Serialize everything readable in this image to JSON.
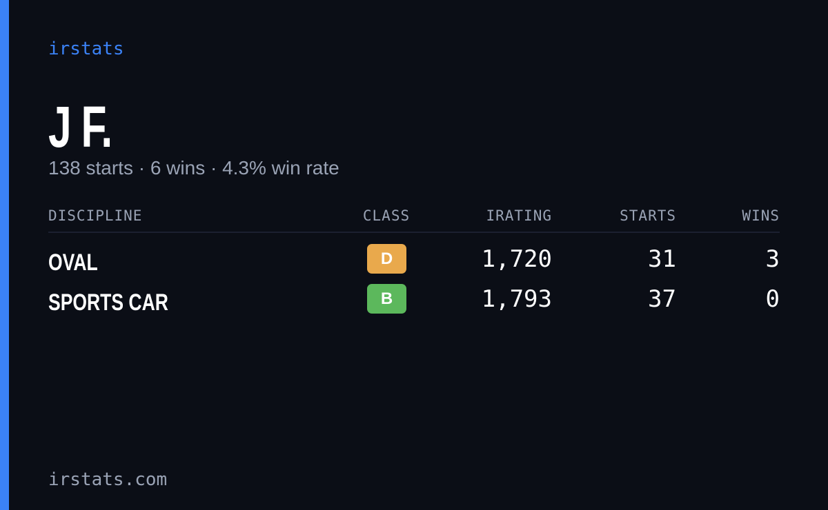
{
  "brand": "irstats",
  "driver": {
    "name": "J F.",
    "summary": "138 starts · 6 wins · 4.3% win rate"
  },
  "table": {
    "headers": {
      "discipline": "DISCIPLINE",
      "class": "CLASS",
      "irating": "IRATING",
      "starts": "STARTS",
      "wins": "WINS"
    },
    "rows": [
      {
        "discipline": "OVAL",
        "class": "D",
        "class_color": "#e9a94c",
        "irating": "1,720",
        "starts": 31,
        "wins": 3
      },
      {
        "discipline": "SPORTS CAR",
        "class": "B",
        "class_color": "#5cb85c",
        "irating": "1,793",
        "starts": 37,
        "wins": 0
      }
    ]
  },
  "footer": "irstats.com"
}
